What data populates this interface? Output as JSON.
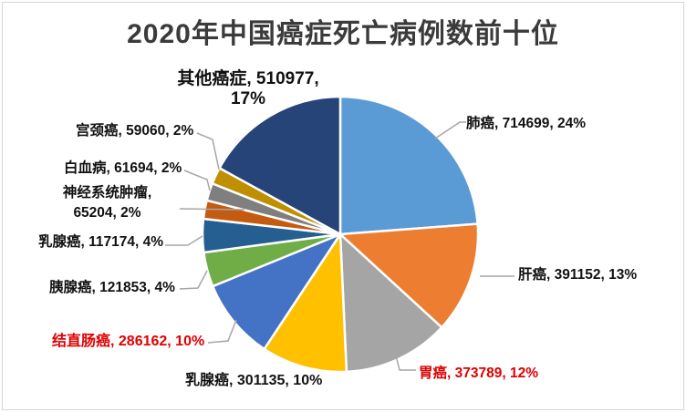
{
  "chart_data": {
    "type": "pie",
    "title": "2020年中国癌症死亡病例数前十位",
    "direction": "clockwise",
    "start_angle_deg": 0,
    "legend_position": "none",
    "colors": {
      "title": "#3B3B3B",
      "leader_line": "#A6A6A6",
      "slice_border": "#FFFFFF",
      "background": "#FFFFFF"
    },
    "slices": [
      {
        "name": "肺癌",
        "value": 714699,
        "percent": "24%",
        "color": "#5B9BD5",
        "label": "肺癌, 714699, 24%",
        "label_color": "#111111"
      },
      {
        "name": "肝癌",
        "value": 391152,
        "percent": "13%",
        "color": "#ED7D31",
        "label": "肝癌, 391152, 13%",
        "label_color": "#111111"
      },
      {
        "name": "胃癌",
        "value": 373789,
        "percent": "12%",
        "color": "#A5A5A5",
        "label": "胃癌, 373789, 12%",
        "label_color": "#E00000"
      },
      {
        "name": "乳腺癌",
        "value": 301135,
        "percent": "10%",
        "color": "#FFC000",
        "label": "乳腺癌, 301135, 10%",
        "label_color": "#111111"
      },
      {
        "name": "结直肠癌",
        "value": 286162,
        "percent": "10%",
        "color": "#4472C4",
        "label": "结直肠癌, 286162, 10%",
        "label_color": "#E00000"
      },
      {
        "name": "胰腺癌",
        "value": 121853,
        "percent": "4%",
        "color": "#70AD47",
        "label": "胰腺癌, 121853, 4%",
        "label_color": "#111111"
      },
      {
        "name": "乳腺癌",
        "value": 117174,
        "percent": "4%",
        "color": "#255E91",
        "label": "乳腺癌, 117174, 4%",
        "label_color": "#111111"
      },
      {
        "name": "神经系统肿瘤",
        "value": 65204,
        "percent": "2%",
        "color": "#C55A11",
        "label_line1": "神经系统肿瘤,",
        "label_line2": "65204, 2%",
        "label_color": "#111111"
      },
      {
        "name": "白血病",
        "value": 61694,
        "percent": "2%",
        "color": "#7F7F7F",
        "label": "白血病, 61694, 2%",
        "label_color": "#111111"
      },
      {
        "name": "宫颈癌",
        "value": 59060,
        "percent": "2%",
        "color": "#BF8F00",
        "label": "宫颈癌, 59060, 2%",
        "label_color": "#111111"
      },
      {
        "name": "其他癌症",
        "value": 510977,
        "percent": "17%",
        "color": "#264478",
        "label_line1": "其他癌症, 510977,",
        "label_line2": "17%",
        "label_color": "#111111"
      }
    ]
  }
}
